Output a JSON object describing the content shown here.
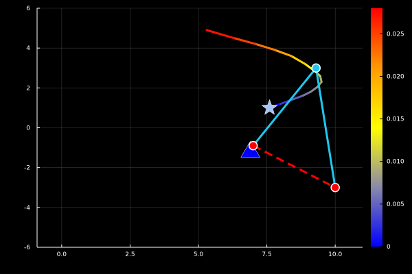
{
  "chart_data": {
    "type": "line",
    "title": "",
    "xlabel": "",
    "ylabel": "",
    "xlim": [
      -0.9,
      11.0
    ],
    "ylim": [
      -6,
      6
    ],
    "grid": true,
    "legend": "none",
    "x_ticks": [
      {
        "value": 0.0,
        "label": "0.0"
      },
      {
        "value": 2.5,
        "label": "2.5"
      },
      {
        "value": 5.0,
        "label": "5.0"
      },
      {
        "value": 7.5,
        "label": "7.5"
      },
      {
        "value": 10.0,
        "label": "10.0"
      }
    ],
    "y_ticks": [
      {
        "value": -6,
        "label": "-6"
      },
      {
        "value": -4,
        "label": "-4"
      },
      {
        "value": -2,
        "label": "-2"
      },
      {
        "value": 0,
        "label": "0"
      },
      {
        "value": 2,
        "label": "2"
      },
      {
        "value": 4,
        "label": "4"
      },
      {
        "value": 6,
        "label": "6"
      }
    ],
    "colorbar": {
      "range": [
        0,
        0.028
      ],
      "ticks": [
        {
          "value": 0,
          "label": "0"
        },
        {
          "value": 0.005,
          "label": "0.005"
        },
        {
          "value": 0.01,
          "label": "0.010"
        },
        {
          "value": 0.015,
          "label": "0.015"
        },
        {
          "value": 0.02,
          "label": "0.020"
        },
        {
          "value": 0.025,
          "label": "0.025"
        }
      ],
      "gradient": [
        "#0000ff",
        "#8080a0",
        "#ffff00",
        "#ff8000",
        "#ff0000"
      ]
    },
    "series": [
      {
        "kind": "trajectory",
        "color": "gradient",
        "points": [
          [
            7.6,
            1.0
          ],
          [
            8.0,
            1.2
          ],
          [
            8.4,
            1.4
          ],
          [
            8.8,
            1.6
          ],
          [
            9.1,
            1.8
          ],
          [
            9.35,
            2.05
          ],
          [
            9.5,
            2.3
          ],
          [
            9.45,
            2.6
          ],
          [
            9.25,
            2.85
          ],
          [
            8.9,
            3.2
          ],
          [
            8.4,
            3.6
          ],
          [
            7.8,
            3.9
          ],
          [
            7.1,
            4.2
          ],
          [
            6.3,
            4.5
          ],
          [
            5.3,
            4.9
          ]
        ],
        "colors": [
          0.0,
          0.002,
          0.004,
          0.006,
          0.007,
          0.008,
          0.009,
          0.01,
          0.012,
          0.015,
          0.018,
          0.02,
          0.023,
          0.026,
          0.028
        ]
      },
      {
        "kind": "links",
        "color": "#1ec8f0",
        "points": [
          [
            7.0,
            -0.9
          ],
          [
            9.3,
            3.0
          ],
          [
            10.0,
            -3.0
          ]
        ]
      },
      {
        "kind": "dashed",
        "color": "#ff0000",
        "points": [
          [
            7.0,
            -0.9
          ],
          [
            10.0,
            -3.0
          ]
        ]
      }
    ],
    "markers": [
      {
        "name": "base-triangle",
        "shape": "triangle",
        "x": 6.9,
        "y": -1.15,
        "color": "#0000ff"
      },
      {
        "name": "joint-circle",
        "shape": "circle",
        "x": 9.3,
        "y": 3.0,
        "color": "#1ec8f0"
      },
      {
        "name": "target-star",
        "shape": "star",
        "x": 7.6,
        "y": 1.0,
        "color": "#a8c4f0"
      },
      {
        "name": "base-circle",
        "shape": "circle",
        "x": 7.0,
        "y": -0.9,
        "color": "#ff0000"
      },
      {
        "name": "end-circle",
        "shape": "circle",
        "x": 10.0,
        "y": -3.0,
        "color": "#ff0000"
      }
    ]
  }
}
